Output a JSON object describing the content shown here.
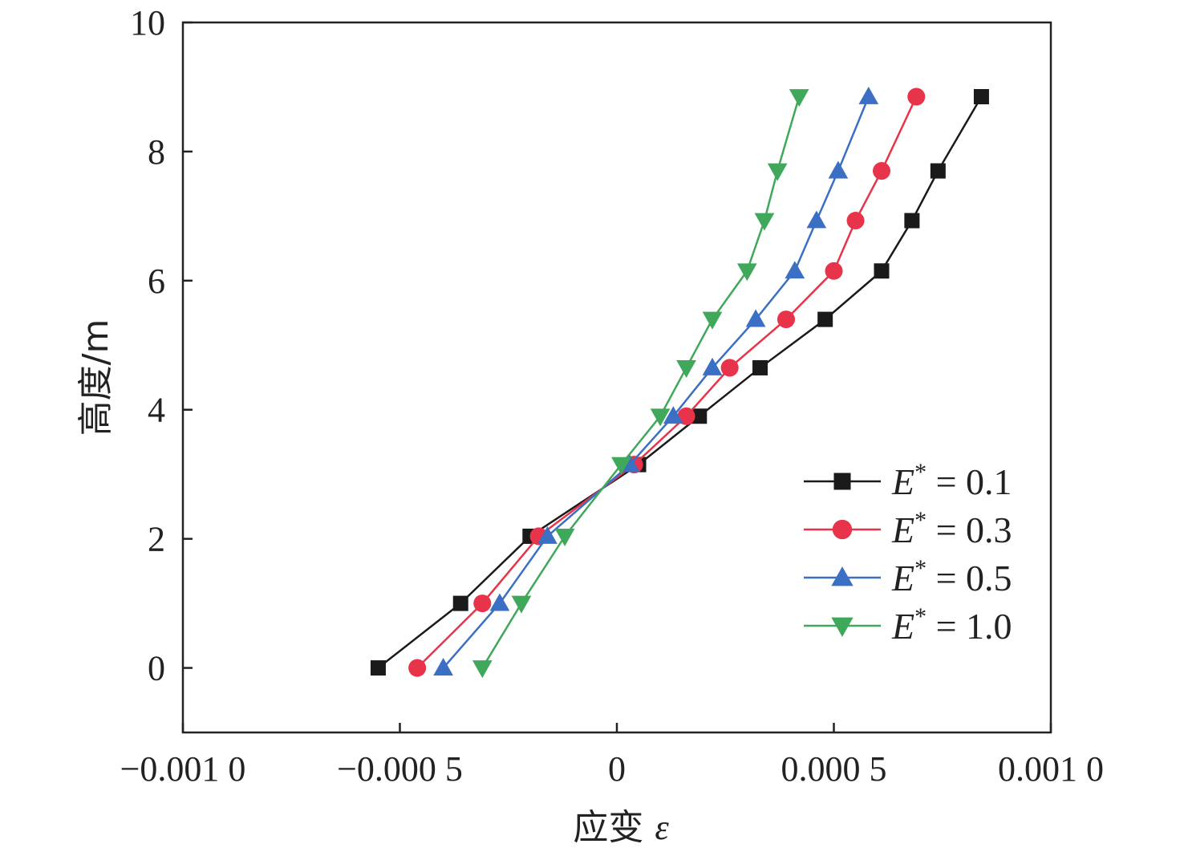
{
  "chart_data": {
    "type": "line",
    "title": "",
    "xlabel_text": "应变 ",
    "xlabel_symbol": "ε",
    "ylabel": "高度/m",
    "xlim": [
      -0.001,
      0.001
    ],
    "ylim": [
      -1,
      10
    ],
    "x_ticks": [
      -0.001,
      -0.0005,
      0,
      0.0005,
      0.001
    ],
    "x_tick_labels": [
      "−0.001 0",
      "−0.000 5",
      "0",
      "0.000 5",
      "0.001 0"
    ],
    "y_ticks": [
      0,
      2,
      4,
      6,
      8,
      10
    ],
    "y_tick_labels": [
      "0",
      "2",
      "4",
      "6",
      "8",
      "10"
    ],
    "grid": false,
    "legend_position": "lower-right",
    "series": [
      {
        "name": "E* = 0.1",
        "legend_var": "E",
        "legend_sup": "*",
        "legend_value": " = 0.1",
        "color": "#1a1a1a",
        "marker": "square",
        "points": [
          {
            "x": -0.00055,
            "y": 0.0
          },
          {
            "x": -0.00036,
            "y": 1.0
          },
          {
            "x": -0.0002,
            "y": 2.04
          },
          {
            "x": 5e-05,
            "y": 3.15
          },
          {
            "x": 0.00019,
            "y": 3.9
          },
          {
            "x": 0.00033,
            "y": 4.65
          },
          {
            "x": 0.00048,
            "y": 5.4
          },
          {
            "x": 0.00061,
            "y": 6.15
          },
          {
            "x": 0.00068,
            "y": 6.93
          },
          {
            "x": 0.00074,
            "y": 7.7
          },
          {
            "x": 0.00084,
            "y": 8.85
          }
        ]
      },
      {
        "name": "E* = 0.3",
        "legend_var": "E",
        "legend_sup": "*",
        "legend_value": " = 0.3",
        "color": "#e8344a",
        "marker": "circle",
        "points": [
          {
            "x": -0.00046,
            "y": 0.0
          },
          {
            "x": -0.00031,
            "y": 1.0
          },
          {
            "x": -0.00018,
            "y": 2.04
          },
          {
            "x": 4e-05,
            "y": 3.15
          },
          {
            "x": 0.00016,
            "y": 3.9
          },
          {
            "x": 0.00026,
            "y": 4.65
          },
          {
            "x": 0.00039,
            "y": 5.4
          },
          {
            "x": 0.0005,
            "y": 6.15
          },
          {
            "x": 0.00055,
            "y": 6.93
          },
          {
            "x": 0.00061,
            "y": 7.7
          },
          {
            "x": 0.00069,
            "y": 8.85
          }
        ]
      },
      {
        "name": "E* = 0.5",
        "legend_var": "E",
        "legend_sup": "*",
        "legend_value": " = 0.5",
        "color": "#3a6fc4",
        "marker": "triangle-up",
        "points": [
          {
            "x": -0.0004,
            "y": 0.0
          },
          {
            "x": -0.00027,
            "y": 1.0
          },
          {
            "x": -0.00016,
            "y": 2.04
          },
          {
            "x": 3e-05,
            "y": 3.15
          },
          {
            "x": 0.00013,
            "y": 3.9
          },
          {
            "x": 0.00022,
            "y": 4.65
          },
          {
            "x": 0.00032,
            "y": 5.4
          },
          {
            "x": 0.00041,
            "y": 6.15
          },
          {
            "x": 0.00046,
            "y": 6.93
          },
          {
            "x": 0.00051,
            "y": 7.7
          },
          {
            "x": 0.00058,
            "y": 8.85
          }
        ]
      },
      {
        "name": "E* = 1.0",
        "legend_var": "E",
        "legend_sup": "*",
        "legend_value": " = 1.0",
        "color": "#3fa85a",
        "marker": "triangle-down",
        "points": [
          {
            "x": -0.00031,
            "y": 0.0
          },
          {
            "x": -0.00022,
            "y": 1.0
          },
          {
            "x": -0.00012,
            "y": 2.04
          },
          {
            "x": 1e-05,
            "y": 3.15
          },
          {
            "x": 0.0001,
            "y": 3.9
          },
          {
            "x": 0.00016,
            "y": 4.65
          },
          {
            "x": 0.00022,
            "y": 5.4
          },
          {
            "x": 0.0003,
            "y": 6.15
          },
          {
            "x": 0.00034,
            "y": 6.93
          },
          {
            "x": 0.00037,
            "y": 7.7
          },
          {
            "x": 0.00042,
            "y": 8.85
          }
        ]
      }
    ]
  }
}
